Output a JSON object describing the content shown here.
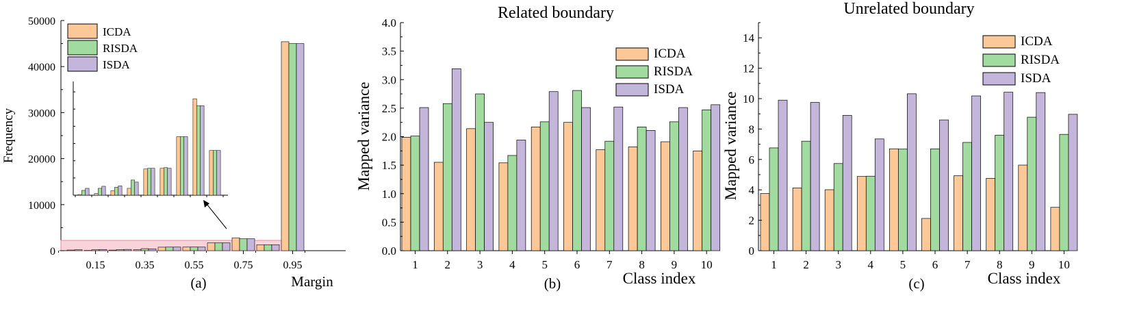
{
  "colors": {
    "ICDA": "#fdc898",
    "RISDA": "#a2dba0",
    "ISDA": "#c4b5db",
    "highlight_fill": "#f9d3da",
    "highlight_stroke": "#e88a9a"
  },
  "chart_data": [
    {
      "id": "a",
      "type": "bar",
      "caption": "(a)",
      "xlabel": "Margin",
      "ylabel": "Frequency",
      "xticks": [
        "0.15",
        "0.35",
        "0.55",
        "0.75",
        "0.95"
      ],
      "yticks": [
        "0",
        "10000",
        "20000",
        "30000",
        "40000",
        "50000"
      ],
      "ylim": [
        0,
        50000
      ],
      "categories": [
        "0.05",
        "0.15",
        "0.25",
        "0.35",
        "0.45",
        "0.55",
        "0.65",
        "0.75",
        "0.85",
        "0.95"
      ],
      "series": [
        {
          "name": "ICDA",
          "values": [
            20,
            50,
            130,
            200,
            760,
            780,
            1700,
            2800,
            1300,
            45400
          ]
        },
        {
          "name": "RISDA",
          "values": [
            140,
            200,
            230,
            440,
            780,
            800,
            1700,
            2600,
            1300,
            45000
          ]
        },
        {
          "name": "ISDA",
          "values": [
            200,
            260,
            270,
            380,
            780,
            780,
            1700,
            2600,
            1300,
            45000
          ]
        }
      ],
      "legend": [
        "ICDA",
        "RISDA",
        "ISDA"
      ],
      "legend_position": "top-left"
    },
    {
      "id": "b",
      "type": "bar",
      "caption": "(b)",
      "title": "Related boundary",
      "xlabel": "Class index",
      "ylabel": "Mapped variance",
      "ylim": [
        0,
        4
      ],
      "yticks": [
        "0.0",
        "0.5",
        "1.0",
        "1.5",
        "2.0",
        "2.5",
        "3.0",
        "3.5",
        "4.0"
      ],
      "categories": [
        "1",
        "2",
        "3",
        "4",
        "5",
        "6",
        "7",
        "8",
        "9",
        "10"
      ],
      "series": [
        {
          "name": "ICDA",
          "values": [
            1.99,
            1.55,
            2.14,
            1.54,
            2.17,
            2.25,
            1.77,
            1.82,
            1.91,
            1.75
          ]
        },
        {
          "name": "RISDA",
          "values": [
            2.01,
            2.58,
            2.75,
            1.67,
            2.26,
            2.81,
            1.92,
            2.17,
            2.26,
            2.47
          ]
        },
        {
          "name": "ISDA",
          "values": [
            2.51,
            3.19,
            2.25,
            1.94,
            2.79,
            2.51,
            2.52,
            2.11,
            2.51,
            2.56
          ]
        }
      ],
      "legend": [
        "ICDA",
        "RISDA",
        "ISDA"
      ],
      "legend_position": "top-right"
    },
    {
      "id": "c",
      "type": "bar",
      "caption": "(c)",
      "title": "Unrelated boundary",
      "xlabel": "Class index",
      "ylabel": "Mapped variance",
      "ylim": [
        0,
        15
      ],
      "yticks": [
        "0",
        "2",
        "4",
        "6",
        "8",
        "10",
        "12",
        "14"
      ],
      "categories": [
        "1",
        "2",
        "3",
        "4",
        "5",
        "6",
        "7",
        "8",
        "9",
        "10"
      ],
      "series": [
        {
          "name": "ICDA",
          "values": [
            3.76,
            4.13,
            4.01,
            4.88,
            6.7,
            2.12,
            4.93,
            4.76,
            5.63,
            2.85
          ]
        },
        {
          "name": "RISDA",
          "values": [
            6.76,
            7.2,
            5.73,
            4.9,
            6.68,
            6.7,
            7.12,
            7.6,
            8.78,
            7.65
          ]
        },
        {
          "name": "ISDA",
          "values": [
            9.9,
            9.75,
            8.9,
            7.35,
            10.32,
            8.6,
            10.18,
            10.42,
            10.4,
            8.97
          ]
        }
      ],
      "legend": [
        "ICDA",
        "RISDA",
        "ISDA"
      ],
      "legend_position": "top-right"
    }
  ]
}
